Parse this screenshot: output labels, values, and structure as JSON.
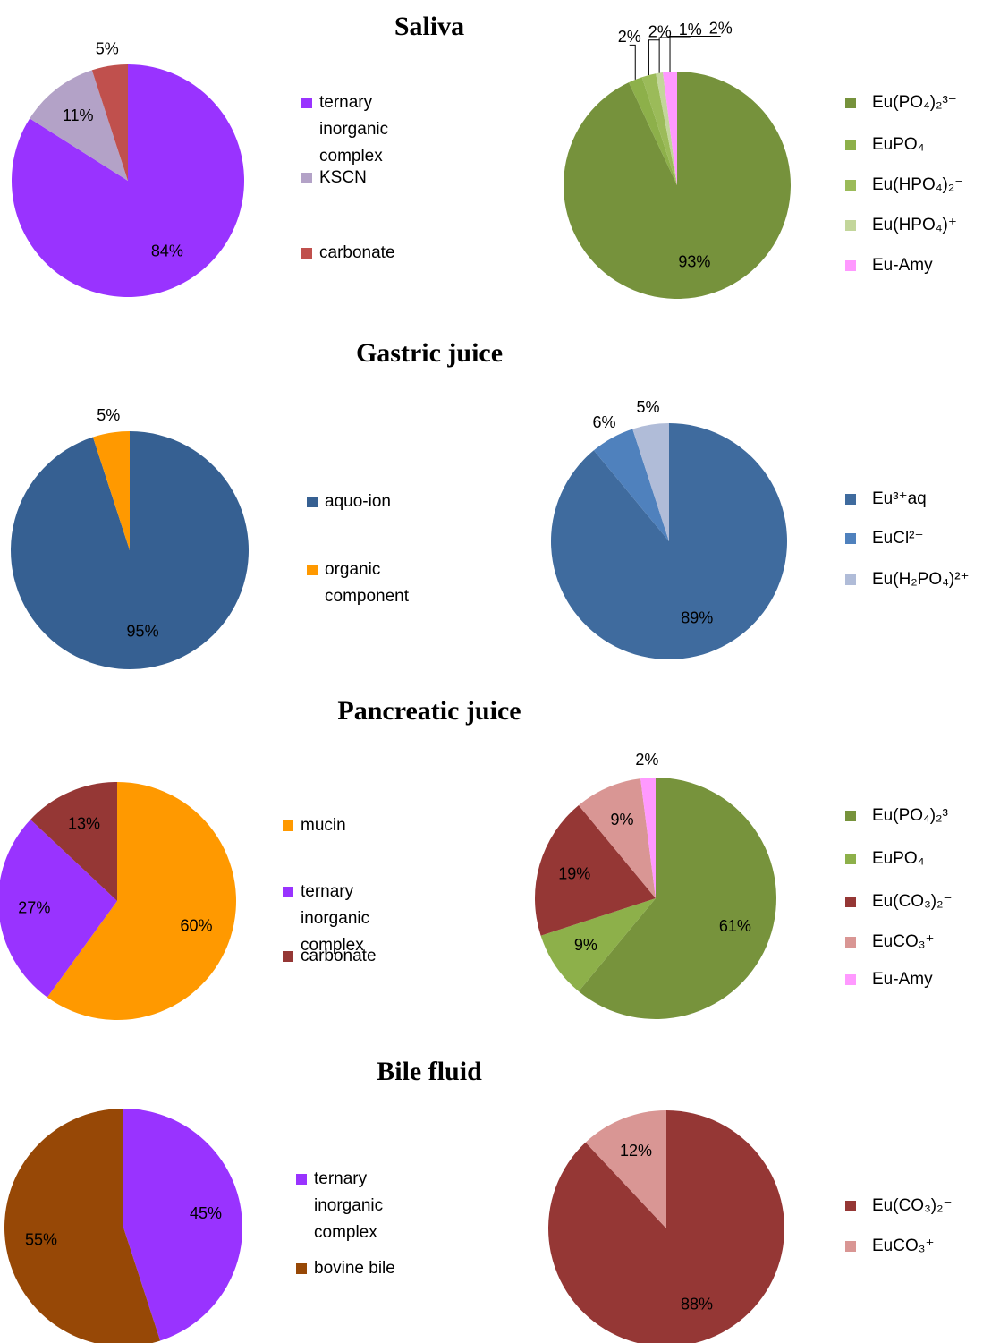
{
  "chart_data": [
    {
      "type": "pie",
      "title": "Saliva",
      "categories": [
        "ternary inorganic complex",
        "KSCN",
        "carbonate"
      ],
      "values": [
        84,
        11,
        5
      ],
      "value_labels": [
        "84%",
        "11%",
        "5%"
      ],
      "colors": [
        "#9933ff",
        "#b3a2c7",
        "#c0504d"
      ]
    },
    {
      "type": "pie",
      "categories": [
        "Eu(PO₄)₂³⁻",
        "EuPO₄",
        "Eu(HPO₄)₂⁻",
        "Eu(HPO₄)⁺",
        "Eu-Amy"
      ],
      "values": [
        93,
        2,
        2,
        1,
        2
      ],
      "value_labels": [
        "93%",
        "2%",
        "2%",
        "1%",
        "2%"
      ],
      "colors": [
        "#76923c",
        "#8db04a",
        "#9bbb59",
        "#c3d69b",
        "#ff99ff"
      ]
    },
    {
      "type": "pie",
      "title": "Gastric juice",
      "categories": [
        "aquo-ion",
        "organic component"
      ],
      "values": [
        95,
        5
      ],
      "value_labels": [
        "95%",
        "5%"
      ],
      "colors": [
        "#366092",
        "#ff9900"
      ]
    },
    {
      "type": "pie",
      "categories": [
        "Eu³⁺aq",
        "EuCl²⁺",
        "Eu(H₂PO₄)²⁺"
      ],
      "values": [
        89,
        6,
        5
      ],
      "value_labels": [
        "89%",
        "6%",
        "5%"
      ],
      "colors": [
        "#3f6b9e",
        "#4f81bd",
        "#b0bcd8"
      ]
    },
    {
      "type": "pie",
      "title": "Pancreatic juice",
      "categories": [
        "mucin",
        "ternary inorganic complex",
        "carbonate"
      ],
      "values": [
        60,
        27,
        13
      ],
      "value_labels": [
        "60%",
        "27%",
        "13%"
      ],
      "colors": [
        "#ff9900",
        "#9933ff",
        "#953735"
      ]
    },
    {
      "type": "pie",
      "categories": [
        "Eu(PO₄)₂³⁻",
        "EuPO₄",
        "Eu(CO₃)₂⁻",
        "EuCO₃⁺",
        "Eu-Amy"
      ],
      "values": [
        61,
        9,
        19,
        9,
        2
      ],
      "value_labels": [
        "61%",
        "9%",
        "19%",
        "9%",
        "2%"
      ],
      "colors": [
        "#77933c",
        "#8db04a",
        "#953735",
        "#d99694",
        "#ff99ff"
      ]
    },
    {
      "type": "pie",
      "title": "Bile fluid",
      "categories": [
        "ternary inorganic complex",
        "bovine bile"
      ],
      "values": [
        45,
        55
      ],
      "value_labels": [
        "45%",
        "55%"
      ],
      "colors": [
        "#9933ff",
        "#974806"
      ]
    },
    {
      "type": "pie",
      "categories": [
        "Eu(CO₃)₂⁻",
        "EuCO₃⁺"
      ],
      "values": [
        88,
        12
      ],
      "value_labels": [
        "88%",
        "12%"
      ],
      "colors": [
        "#953735",
        "#d99694"
      ]
    }
  ]
}
